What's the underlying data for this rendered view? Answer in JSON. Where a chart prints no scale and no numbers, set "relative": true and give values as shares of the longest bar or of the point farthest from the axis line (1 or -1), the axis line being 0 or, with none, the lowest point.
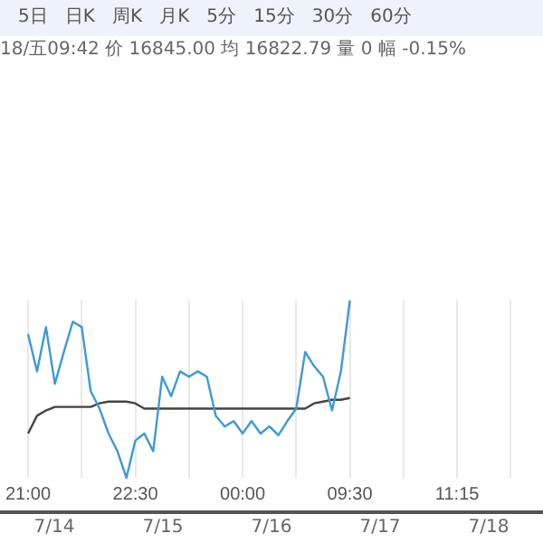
{
  "chart_data": {
    "type": "line",
    "title": "5日   日K   周K   月K   5分   15分   30分   60分",
    "subtitle": "18/五09:42 价 16845.00 均 16822.79 量 0 幅 -0.15%",
    "relative": true,
    "categories": [
      "21:00",
      null,
      null,
      null,
      null,
      null,
      null,
      null,
      null,
      null,
      null,
      null,
      "22:30",
      null,
      null,
      null,
      null,
      null,
      null,
      null,
      null,
      null,
      null,
      null,
      "00:00",
      null,
      null,
      null,
      null,
      null,
      null,
      null,
      null,
      null,
      null,
      null,
      "09:30",
      null,
      null,
      null,
      null,
      null,
      null,
      null,
      null,
      null,
      null,
      null,
      "11:15",
      null,
      null,
      null,
      null,
      null,
      null,
      null,
      null,
      null
    ],
    "series": [
      {
        "color": "#3d9ad6",
        "values": [
          0.81,
          0.6,
          0.85,
          0.53,
          0.71,
          0.88,
          0.85,
          0.49,
          0.39,
          0.25,
          0.15,
          0,
          0.21,
          0.25,
          0.15,
          0.57,
          0.46,
          0.6,
          0.57,
          0.6,
          0.57,
          0.35,
          0.29,
          0.32,
          0.25,
          0.32,
          0.25,
          0.29,
          0.24,
          0.32,
          0.39,
          0.71,
          0.63,
          0.57,
          0.38,
          0.6,
          1,
          null,
          null,
          null,
          null,
          null,
          null,
          null,
          null,
          null,
          null,
          null,
          null,
          null,
          null,
          null,
          null,
          null,
          null,
          null,
          null,
          null
        ]
      },
      {
        "color": "#444444",
        "values": [
          0.25,
          0.35,
          0.38,
          0.4,
          0.4,
          0.4,
          0.4,
          0.4,
          0.42,
          0.43,
          0.43,
          0.43,
          0.42,
          0.39,
          0.39,
          0.39,
          0.39,
          0.39,
          0.39,
          0.39,
          0.39,
          0.39,
          0.39,
          0.39,
          0.39,
          0.39,
          0.39,
          0.39,
          0.39,
          0.39,
          0.39,
          0.39,
          0.42,
          0.43,
          0.44,
          0.44,
          0.45,
          null,
          null,
          null,
          null,
          null,
          null,
          null,
          null,
          null,
          null,
          null,
          null,
          null,
          null,
          null,
          null,
          null,
          null,
          null,
          null,
          null
        ]
      }
    ],
    "annotations": [
      "7/14",
      "7/15",
      "7/16",
      "7/17",
      "7/18"
    ],
    "grid": "x",
    "legend": false,
    "tick_labels": "x",
    "marker": "none",
    "line_style": "solid"
  }
}
